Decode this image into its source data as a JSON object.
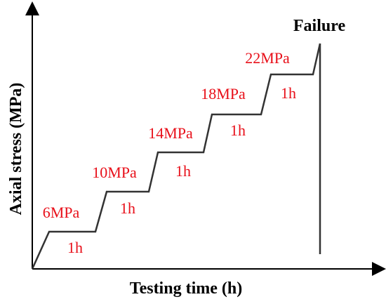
{
  "chart_data": {
    "type": "line",
    "xlabel": "Testing time (h)",
    "ylabel": "Axial stress (MPa)",
    "annotation_failure": "Failure",
    "steps": [
      {
        "stress_label": "6MPa",
        "duration_label": "1h"
      },
      {
        "stress_label": "10MPa",
        "duration_label": "1h"
      },
      {
        "stress_label": "14MPa",
        "duration_label": "1h"
      },
      {
        "stress_label": "18MPa",
        "duration_label": "1h"
      },
      {
        "stress_label": "22MPa",
        "duration_label": "1h"
      }
    ],
    "colors": {
      "labels": "#e8101a",
      "line": "#333333",
      "axes": "#000000"
    }
  }
}
